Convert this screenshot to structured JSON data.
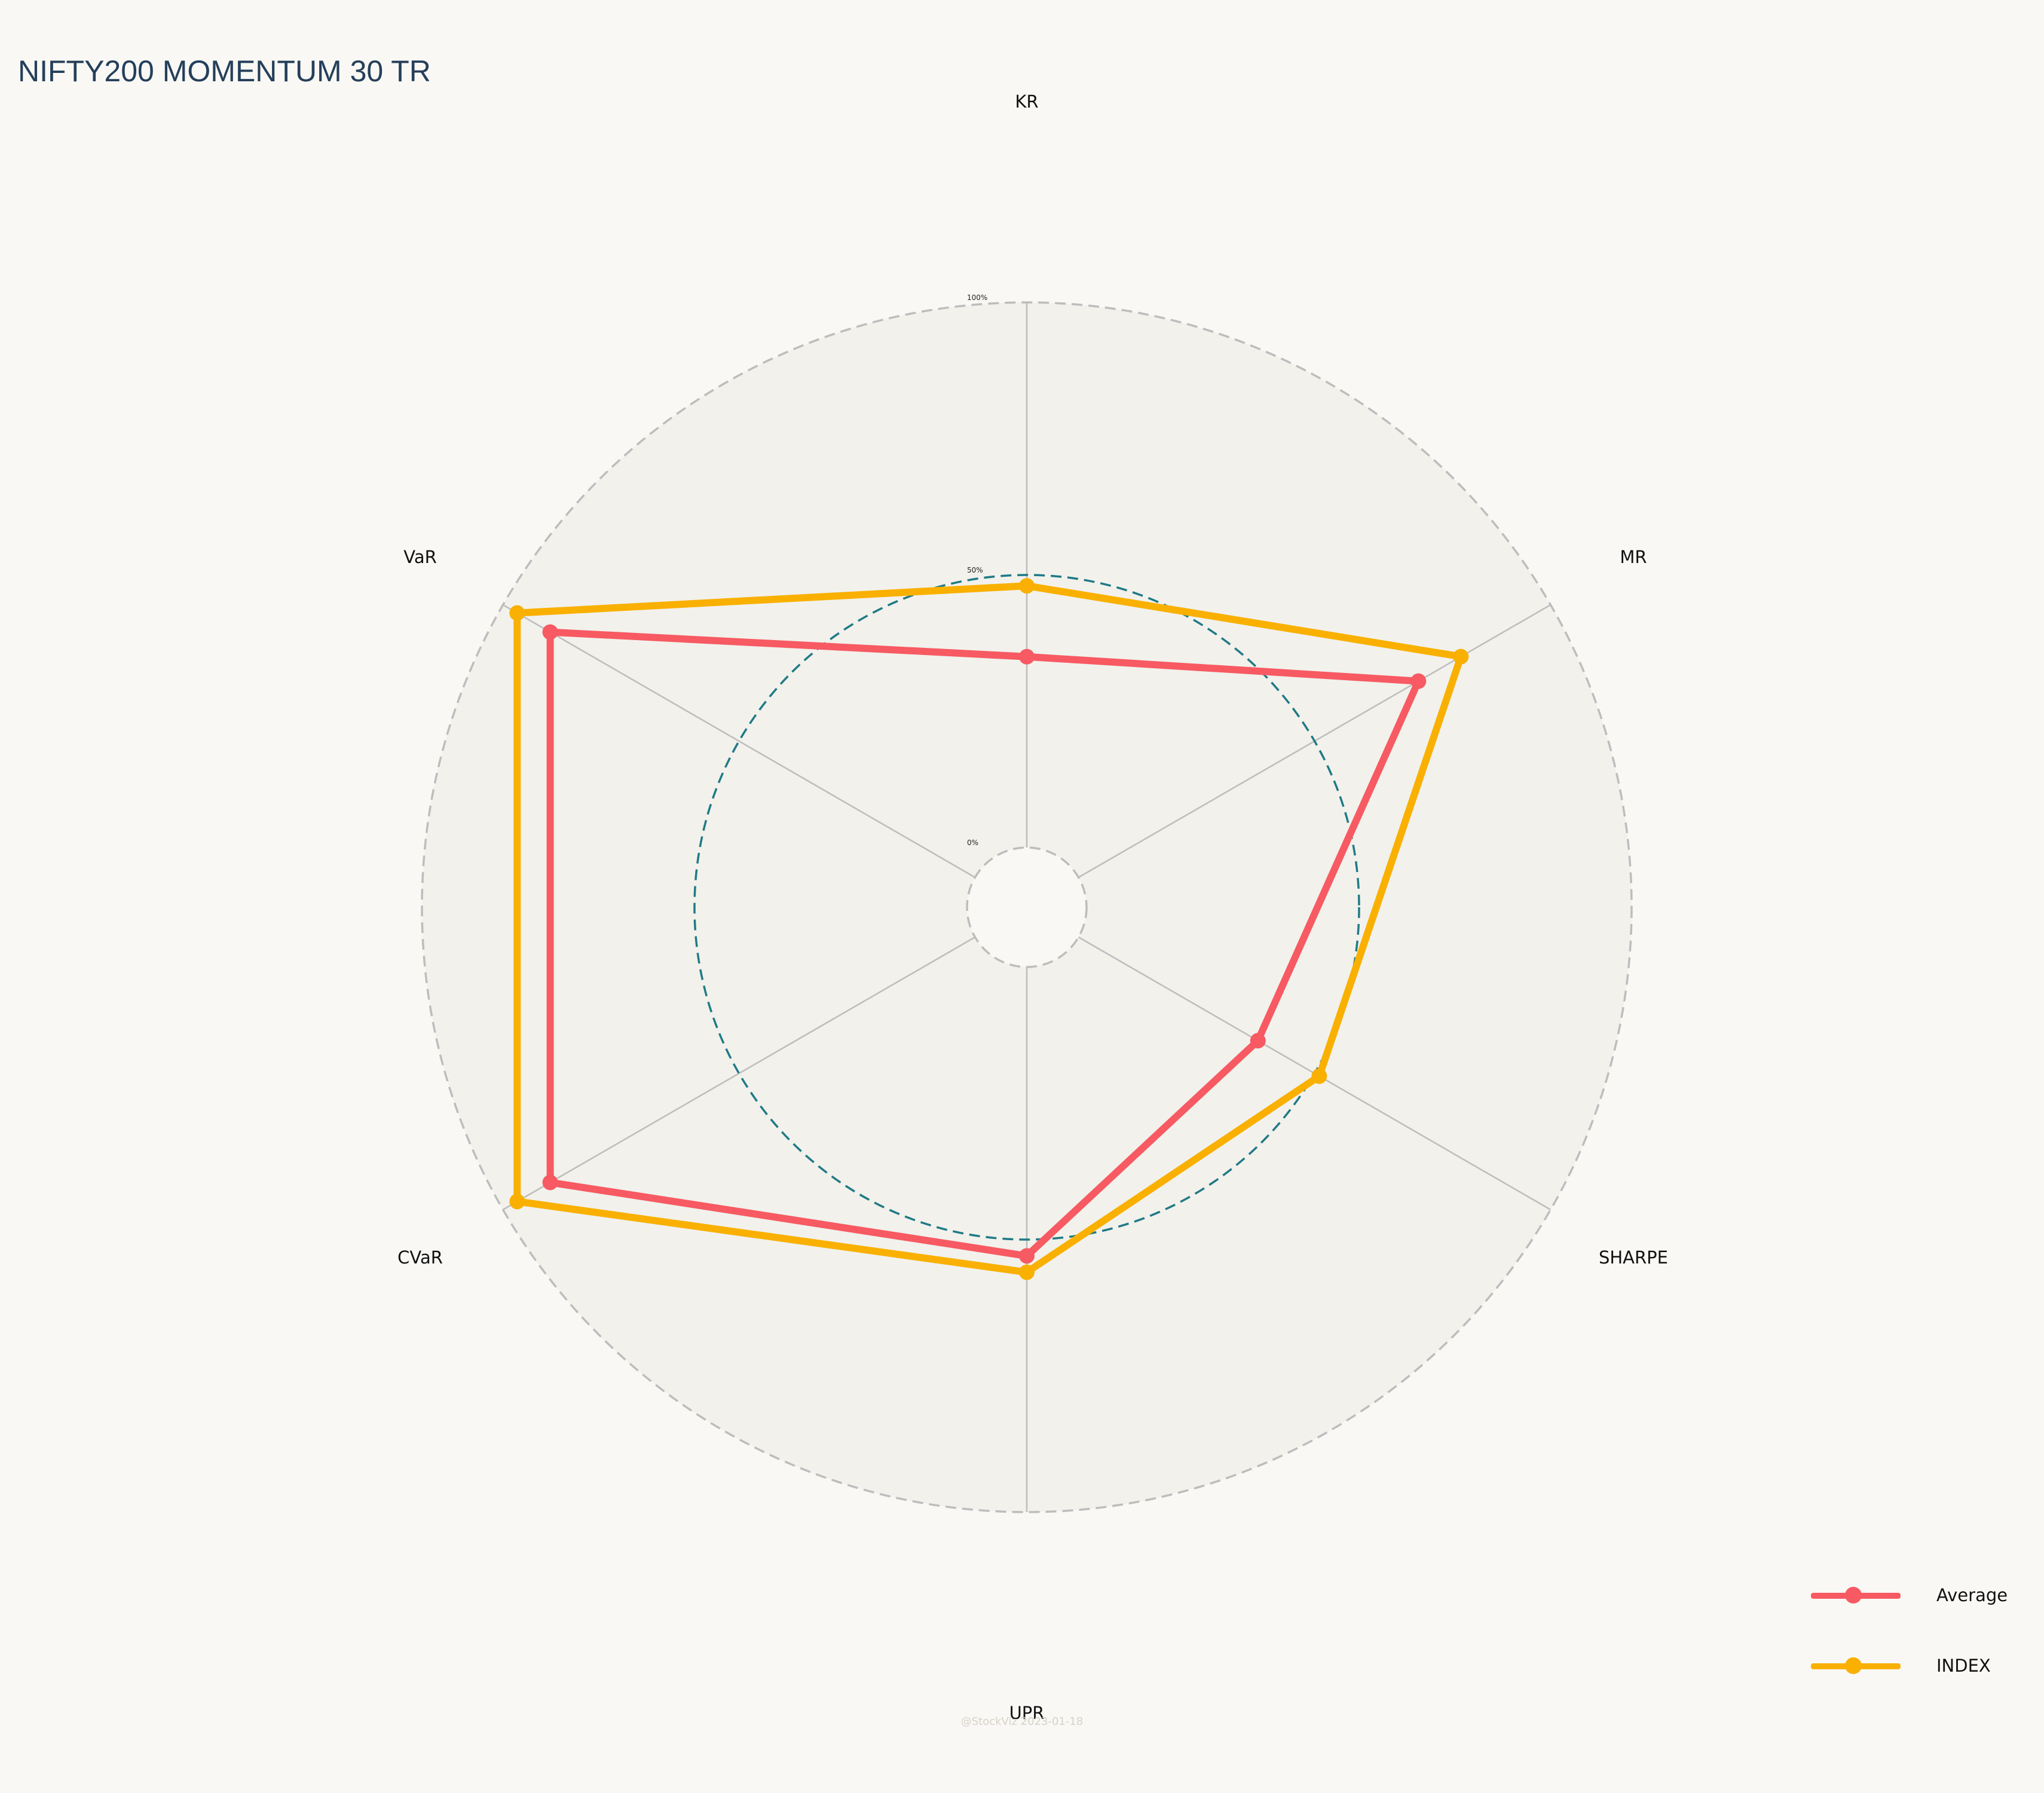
{
  "title": "NIFTY200 MOMENTUM 30 TR",
  "watermark": "@StockViz 2023-01-18",
  "colors": {
    "background": "#f9f8f4",
    "plot_background": "#f2f1ec",
    "title": "#253f5b",
    "grid": "#bdbdbd",
    "mid_ring": "#1f7a85",
    "average": "#f75a62",
    "index": "#f9b000"
  },
  "chart_data": {
    "type": "radar",
    "title": "NIFTY200 MOMENTUM 30 TR",
    "axes": [
      "KR",
      "MR",
      "SHARPE",
      "UPR",
      "CVaR",
      "VaR"
    ],
    "range": [
      0,
      100
    ],
    "tick_labels": [
      "0%",
      "50%",
      "100%"
    ],
    "grid": true,
    "legend_position": "bottom-right",
    "series": [
      {
        "name": "Average",
        "values": [
          35,
          72,
          38,
          53,
          90,
          90
        ]
      },
      {
        "name": "INDEX",
        "values": [
          48,
          81,
          51,
          56,
          97,
          97
        ]
      }
    ]
  }
}
